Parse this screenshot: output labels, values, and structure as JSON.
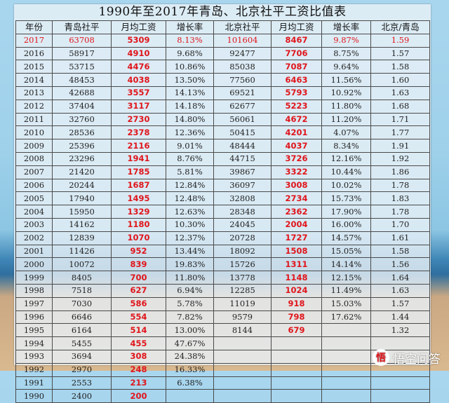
{
  "title": "1990年至2017年青岛、北京社平工资比值表",
  "headers": [
    "年份",
    "青岛社平",
    "月均工资",
    "增长率",
    "北京社平",
    "月均工资",
    "增长率",
    "北京/青岛"
  ],
  "rows": [
    [
      "2017",
      "63708",
      "5309",
      "8.13%",
      "101604",
      "8467",
      "9.87%",
      "1.59"
    ],
    [
      "2016",
      "58917",
      "4910",
      "9.68%",
      "92477",
      "7706",
      "8.75%",
      "1.57"
    ],
    [
      "2015",
      "53715",
      "4476",
      "10.86%",
      "85038",
      "7087",
      "9.64%",
      "1.58"
    ],
    [
      "2014",
      "48453",
      "4038",
      "13.50%",
      "77560",
      "6463",
      "11.56%",
      "1.60"
    ],
    [
      "2013",
      "42688",
      "3557",
      "14.13%",
      "69521",
      "5793",
      "10.92%",
      "1.63"
    ],
    [
      "2012",
      "37404",
      "3117",
      "14.18%",
      "62677",
      "5223",
      "11.80%",
      "1.68"
    ],
    [
      "2011",
      "32760",
      "2730",
      "14.80%",
      "56061",
      "4672",
      "11.20%",
      "1.71"
    ],
    [
      "2010",
      "28536",
      "2378",
      "12.36%",
      "50415",
      "4201",
      "4.07%",
      "1.77"
    ],
    [
      "2009",
      "25396",
      "2116",
      "9.01%",
      "48444",
      "4037",
      "8.34%",
      "1.91"
    ],
    [
      "2008",
      "23296",
      "1941",
      "8.76%",
      "44715",
      "3726",
      "12.16%",
      "1.92"
    ],
    [
      "2007",
      "21420",
      "1785",
      "5.81%",
      "39867",
      "3322",
      "10.44%",
      "1.86"
    ],
    [
      "2006",
      "20244",
      "1687",
      "12.84%",
      "36097",
      "3008",
      "10.02%",
      "1.78"
    ],
    [
      "2005",
      "17940",
      "1495",
      "12.48%",
      "32808",
      "2734",
      "15.73%",
      "1.83"
    ],
    [
      "2004",
      "15950",
      "1329",
      "12.63%",
      "28348",
      "2362",
      "17.90%",
      "1.78"
    ],
    [
      "2003",
      "14162",
      "1180",
      "10.30%",
      "24045",
      "2004",
      "16.00%",
      "1.70"
    ],
    [
      "2002",
      "12839",
      "1070",
      "12.37%",
      "20728",
      "1727",
      "14.57%",
      "1.61"
    ],
    [
      "2001",
      "11426",
      "952",
      "13.44%",
      "18092",
      "1508",
      "15.05%",
      "1.58"
    ],
    [
      "2000",
      "10072",
      "839",
      "19.83%",
      "15726",
      "1311",
      "14.14%",
      "1.56"
    ],
    [
      "1999",
      "8405",
      "700",
      "11.80%",
      "13778",
      "1148",
      "12.15%",
      "1.64"
    ],
    [
      "1998",
      "7518",
      "627",
      "6.94%",
      "12285",
      "1024",
      "11.49%",
      "1.63"
    ],
    [
      "1997",
      "7030",
      "586",
      "5.78%",
      "11019",
      "918",
      "15.03%",
      "1.57"
    ],
    [
      "1996",
      "6646",
      "554",
      "7.82%",
      "9579",
      "798",
      "17.62%",
      "1.44"
    ],
    [
      "1995",
      "6164",
      "514",
      "13.00%",
      "8144",
      "679",
      "",
      "1.32"
    ],
    [
      "1994",
      "5455",
      "455",
      "47.67%",
      "",
      "",
      "",
      ""
    ],
    [
      "1993",
      "3694",
      "308",
      "24.38%",
      "",
      "",
      "",
      ""
    ],
    [
      "1992",
      "2970",
      "248",
      "16.33%",
      "",
      "",
      "",
      ""
    ],
    [
      "1991",
      "2553",
      "213",
      "6.38%",
      "",
      "",
      "",
      ""
    ],
    [
      "1990",
      "2400",
      "200",
      "",
      "",
      "",
      "",
      ""
    ]
  ],
  "watermark": {
    "text": "悟空问答",
    "icon": "wukong-answer-logo-icon",
    "icon_glyph": "悟"
  },
  "colors": {
    "highlight": "#e0151b",
    "text": "#222222",
    "grid": "#4a4a4a"
  }
}
